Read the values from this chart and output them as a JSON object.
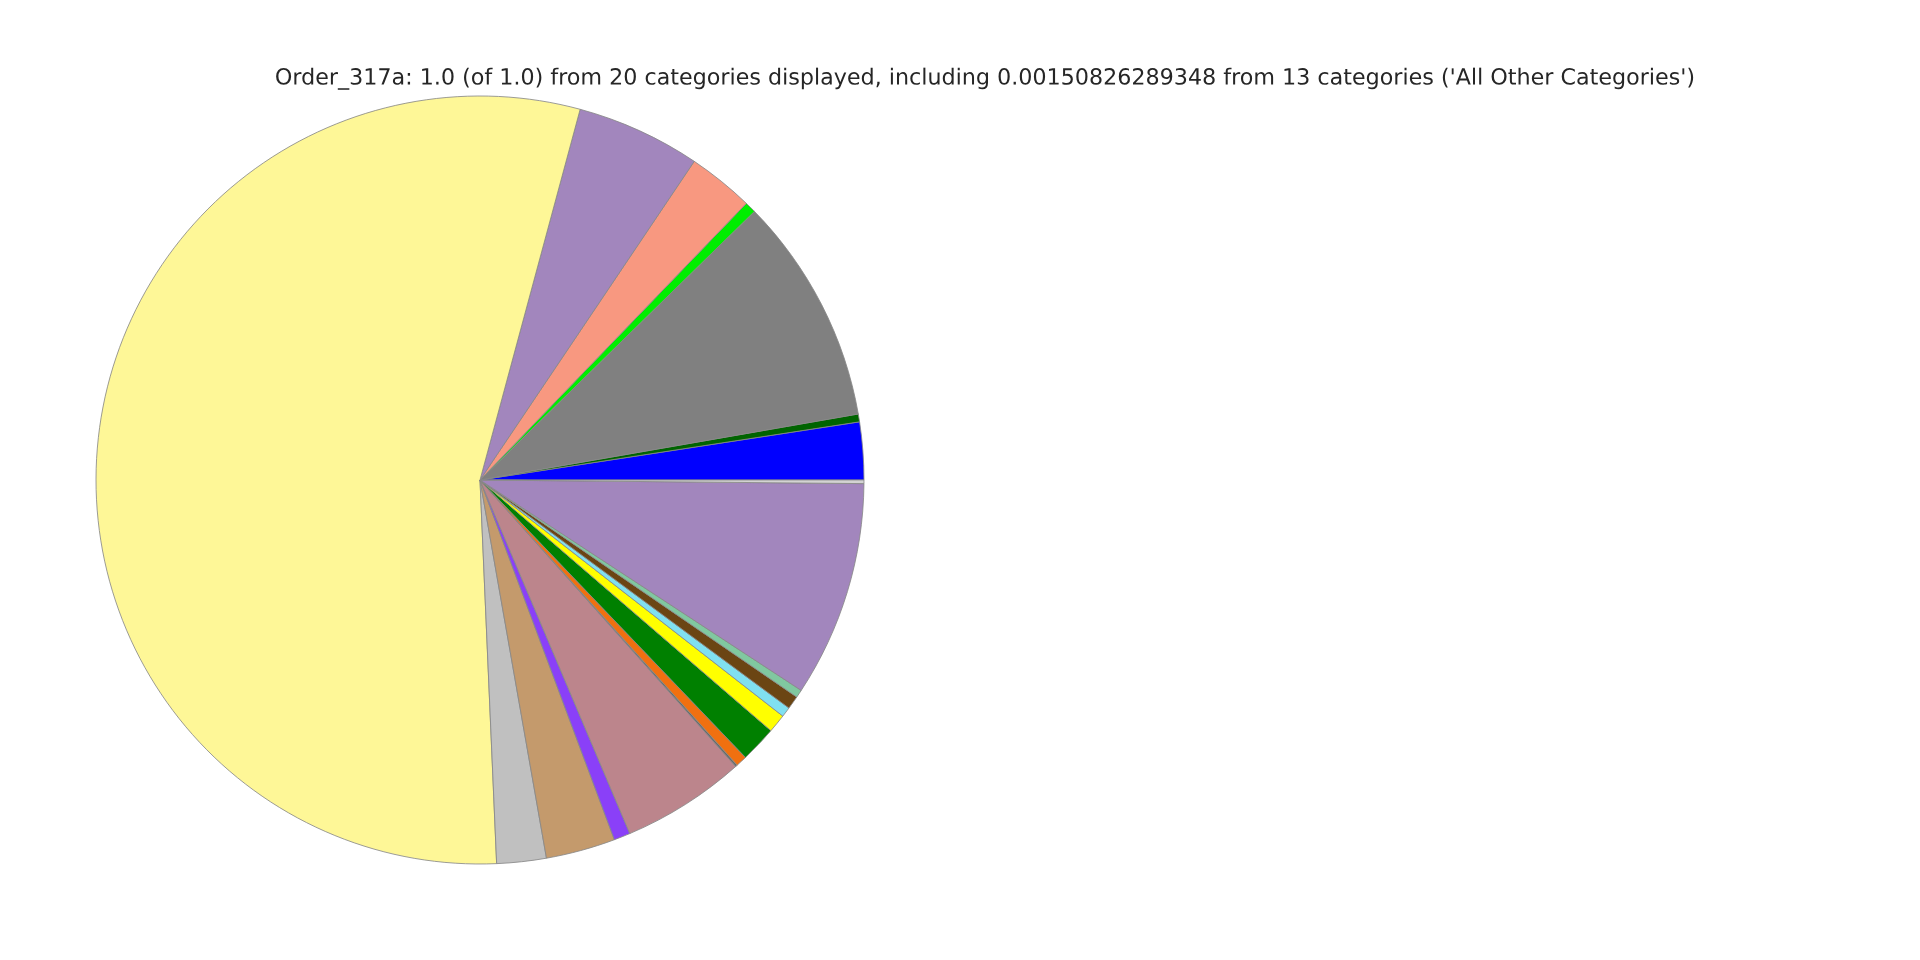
{
  "chart_data": {
    "type": "pie",
    "title": "Order_317a: 1.0 (of 1.0) from 20 categories displayed, including 0.00150826289348 from 13 categories ('All Other Categories')",
    "categories": [
      null,
      null,
      null,
      null,
      null,
      null,
      null,
      null,
      null,
      null,
      null,
      null,
      null,
      null,
      null,
      null,
      null,
      null,
      null,
      null
    ],
    "values": [
      2.42,
      0.33,
      9.58,
      0.47,
      2.78,
      5.22,
      54.89,
      2.08,
      2.92,
      0.69,
      5.22,
      0.08,
      0.47,
      1.53,
      0.78,
      0.42,
      0.56,
      0.33,
      9.08,
      0.15
    ],
    "colors": [
      "#0000ff",
      "#006400",
      "#808080",
      "#00ee00",
      "#f89880",
      "#a286bd",
      "#fef797",
      "#c0c0c0",
      "#c49a6c",
      "#8a40f8",
      "#bc858c",
      "#696969",
      "#f07010",
      "#008000",
      "#ffff00",
      "#80e0f0",
      "#6b4513",
      "#80c8a0",
      "#a286bd",
      "#d3d3d3"
    ],
    "legend": false
  }
}
